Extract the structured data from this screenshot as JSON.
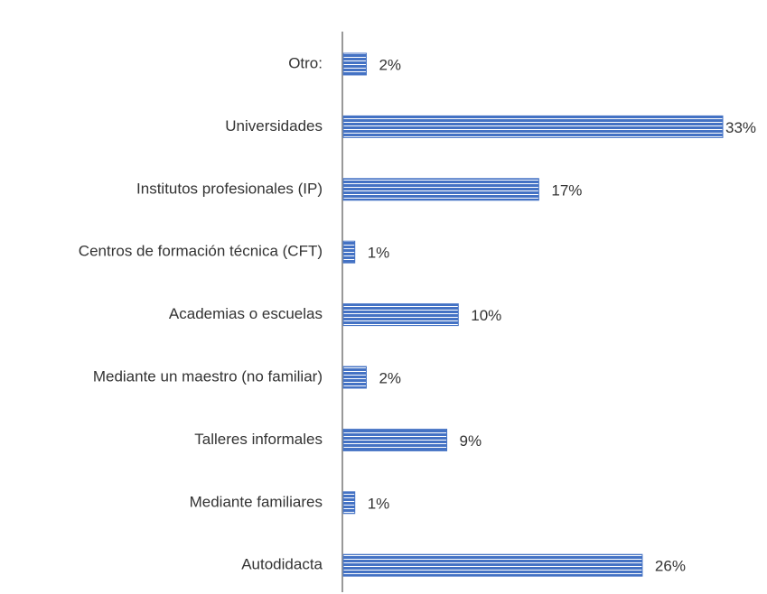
{
  "chart_data": {
    "type": "barh",
    "categories": [
      "Otro:",
      "Universidades",
      "Institutos profesionales (IP)",
      "Centros de formación técnica (CFT)",
      "Academias o escuelas",
      "Mediante un maestro (no familiar)",
      "Talleres informales",
      "Mediante familiares",
      "Autodidacta"
    ],
    "values": [
      2,
      33,
      17,
      1,
      10,
      2,
      9,
      1,
      26
    ],
    "value_labels": [
      "2%",
      "33%",
      "17%",
      "1%",
      "10%",
      "2%",
      "9%",
      "1%",
      "26%"
    ],
    "color": "#4472c4"
  }
}
